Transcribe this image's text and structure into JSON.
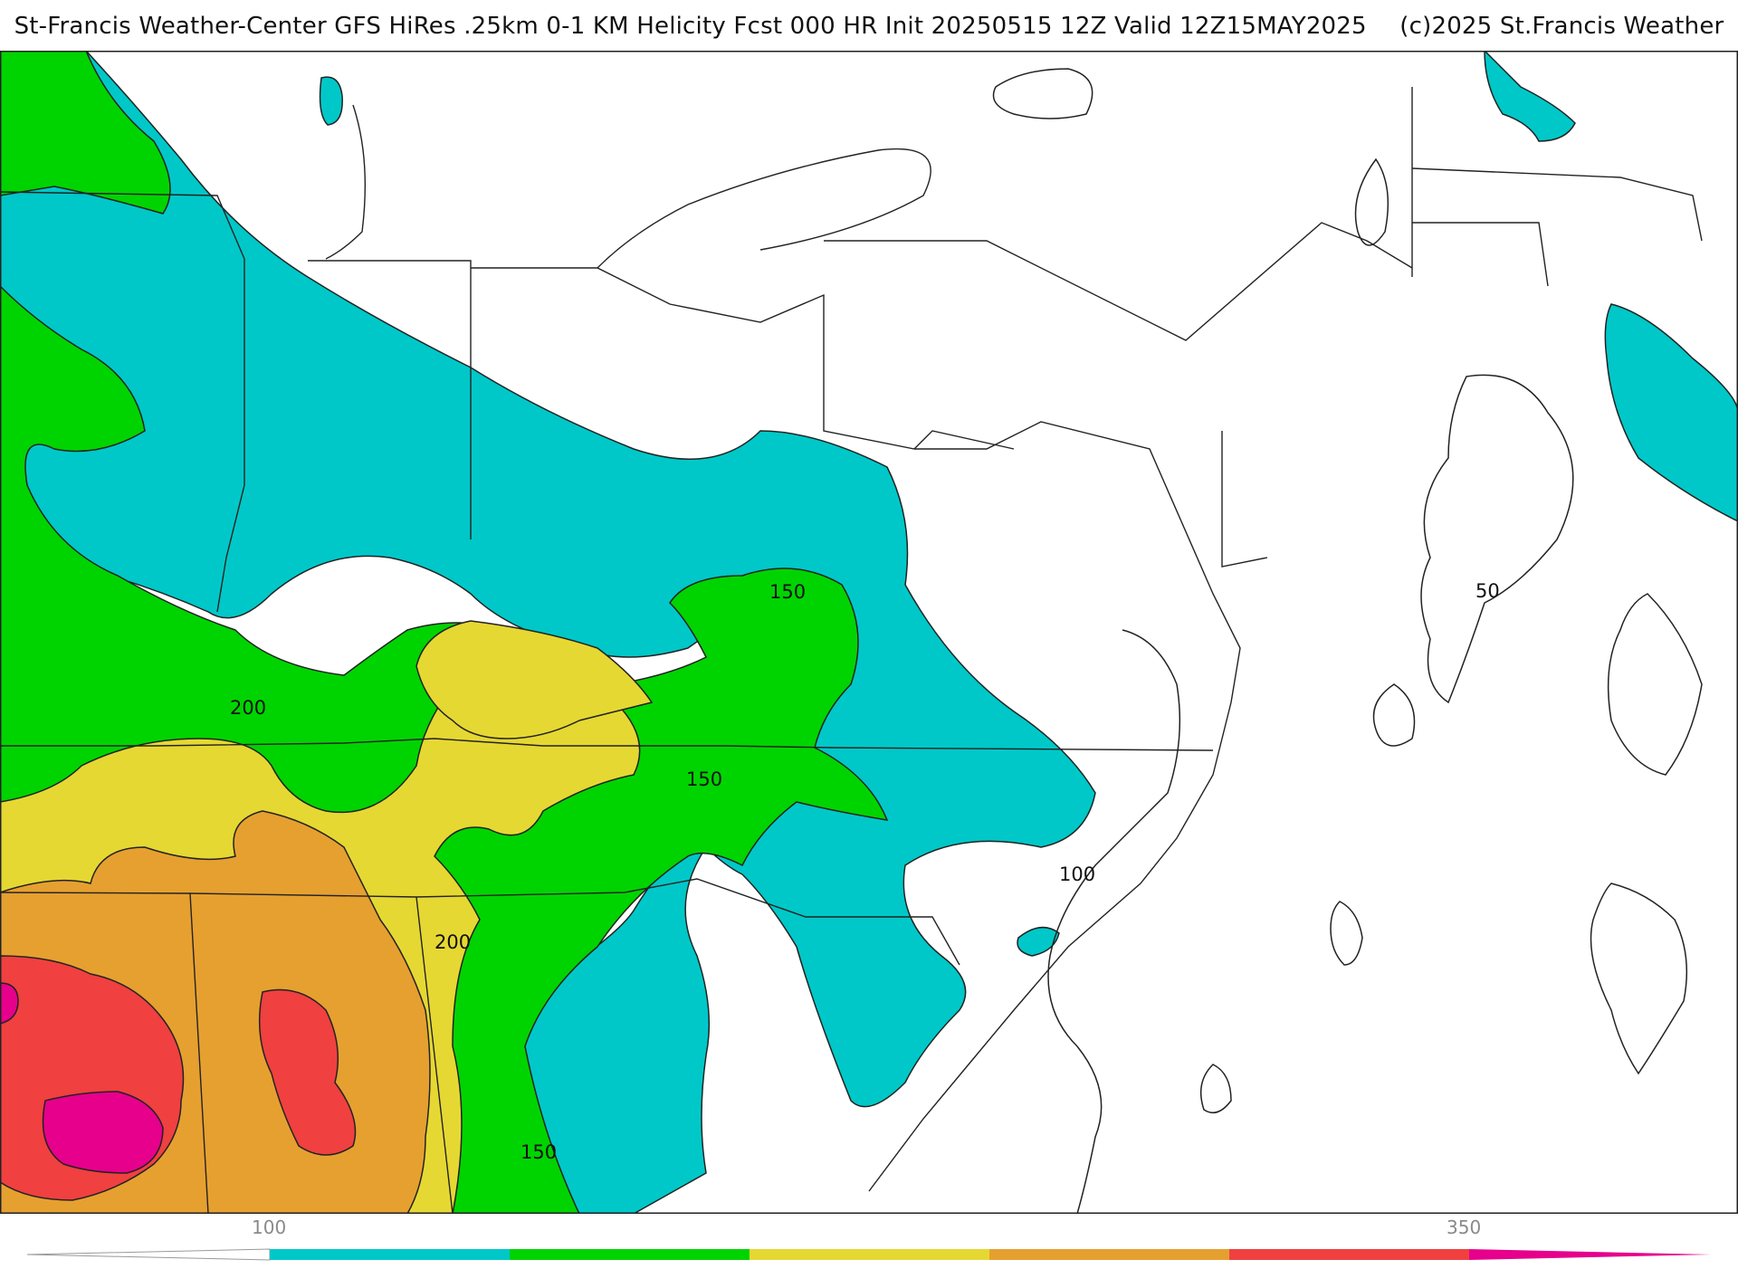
{
  "title": {
    "main": "St-Francis Weather-Center GFS HiRes .25km 0-1 KM Helicity Fcst 000 HR Init 20250515 12Z  Valid 12Z15MAY2025",
    "copyright": "(c)2025 St.Francis Weather"
  },
  "contour_labels": [
    "150",
    "200",
    "150",
    "200",
    "100",
    "150",
    "50"
  ],
  "colorbar": {
    "tick_left": "100",
    "tick_right": "350",
    "colors": [
      "#00c8c8",
      "#00d400",
      "#e6d832",
      "#e6a030",
      "#f04040",
      "#e6008c"
    ]
  },
  "palette": {
    "lt100": "#ffffff",
    "100": "#00c8c8",
    "150": "#00d400",
    "200": "#e6d832",
    "250": "#e6a030",
    "300": "#f04040",
    "350": "#e6008c"
  }
}
